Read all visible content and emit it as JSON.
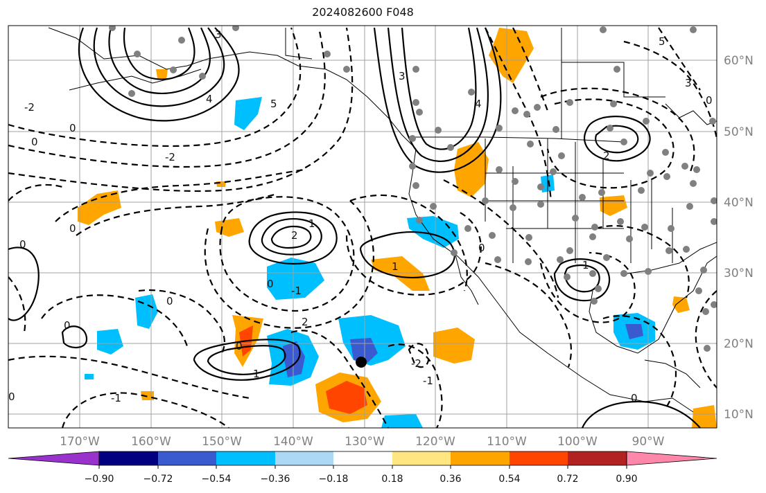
{
  "title": "2024082600 F048",
  "map": {
    "lat_labels": [
      "60°N",
      "50°N",
      "40°N",
      "30°N",
      "20°N",
      "10°N"
    ],
    "lon_labels": [
      "170°W",
      "160°W",
      "150°W",
      "140°W",
      "130°W",
      "120°W",
      "110°W",
      "100°W",
      "90°W"
    ],
    "contour_labels": [
      "0",
      "1",
      "2",
      "3",
      "4",
      "5",
      "-1",
      "-2"
    ],
    "colors": {
      "contour": "#000000",
      "grid": "#a0a0a0",
      "coast": "#000000",
      "station_dot": "#808080"
    }
  },
  "colorbar": {
    "tick_labels": [
      "−0.90",
      "−0.72",
      "−0.54",
      "−0.36",
      "−0.18",
      "0.18",
      "0.36",
      "0.54",
      "0.72",
      "0.90"
    ],
    "colors": [
      "#9932cc",
      "#000080",
      "#3a5bd0",
      "#00bfff",
      "#add8f5",
      "#ffffff",
      "#ffe680",
      "#ffa500",
      "#ff4500",
      "#b22222",
      "#ff88aa"
    ]
  }
}
